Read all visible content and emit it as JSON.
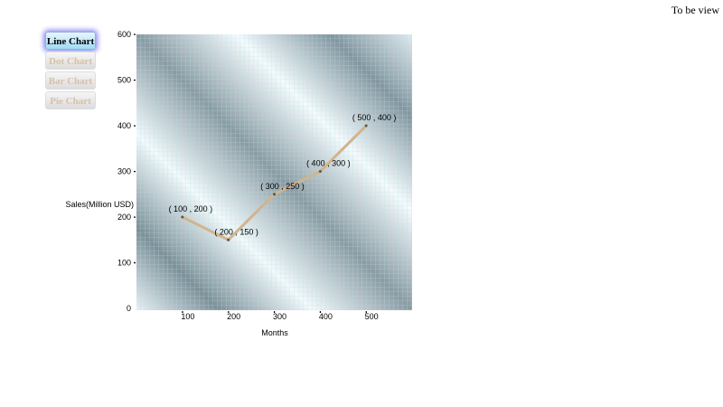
{
  "top_note": "To be view",
  "buttons": [
    {
      "label": "Line Chart",
      "active": true
    },
    {
      "label": "Dot Chart",
      "active": false
    },
    {
      "label": "Bar Chart",
      "active": false
    },
    {
      "label": "Pie Chart",
      "active": false
    }
  ],
  "chart_data": {
    "type": "line",
    "xlabel": "Months",
    "ylabel": "Sales(Million USD)",
    "x": [
      100,
      200,
      300,
      400,
      500
    ],
    "y": [
      200,
      150,
      250,
      300,
      400
    ],
    "point_labels": [
      "( 100 , 200 )",
      "( 200 , 150 )",
      "( 300 , 250 )",
      "( 400 , 300 )",
      "( 500 , 400 )"
    ],
    "xticks": [
      100,
      200,
      300,
      400,
      500
    ],
    "yticks": [
      0,
      100,
      200,
      300,
      400,
      500,
      600
    ],
    "xlim": [
      0,
      600
    ],
    "ylim": [
      0,
      600
    ],
    "grid": true,
    "line_color": "#d2b48c"
  }
}
